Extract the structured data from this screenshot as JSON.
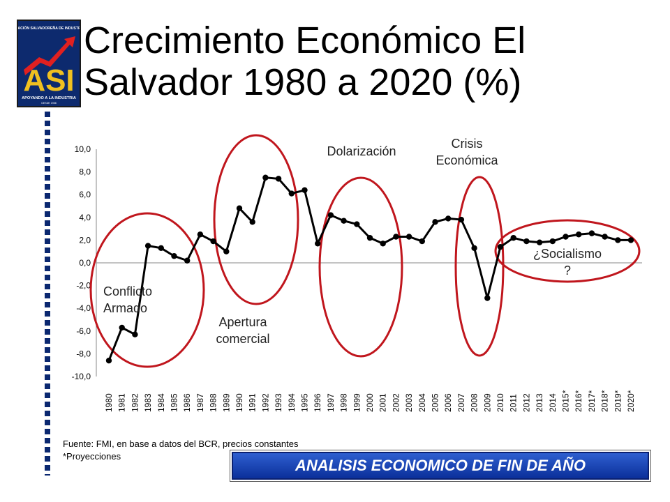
{
  "logo": {
    "org_text": "ASOCIACIÓN SALVADOREÑA DE INDUSTRIALES",
    "acronym": "ASI",
    "tagline": "APOYANDO A LA INDUSTRIA",
    "since": "DESDE 1958",
    "colors": {
      "background": "#0d2a6e",
      "acronym": "#f0c020",
      "arrow": "#e02020"
    }
  },
  "title": "Crecimiento Económico El Salvador 1980 a 2020 (%)",
  "footnote": {
    "source": "Fuente: FMI, en base a datos del BCR, precios constantes",
    "projections": "*Proyecciones"
  },
  "banner": {
    "label": "ANALISIS ECONOMICO DE FIN DE AÑO",
    "color": "#1d49c0"
  },
  "chart_data": {
    "type": "line",
    "title": "",
    "xlabel": "",
    "ylabel": "",
    "ylim": [
      -10,
      10
    ],
    "y_ticks": [
      "10,0",
      "8,0",
      "6,0",
      "4,0",
      "2,0",
      "0,0",
      "-2,0",
      "-4,0",
      "-6,0",
      "-8,0",
      "-10,0"
    ],
    "grid": false,
    "line_color": "#000000",
    "categories": [
      "1980",
      "1981",
      "1982",
      "1983",
      "1984",
      "1985",
      "1986",
      "1987",
      "1988",
      "1989",
      "1990",
      "1991",
      "1992",
      "1993",
      "1994",
      "1995",
      "1996",
      "1997",
      "1998",
      "1999",
      "2000",
      "2001",
      "2002",
      "2003",
      "2004",
      "2005",
      "2006",
      "2007",
      "2008",
      "2009",
      "2010",
      "2011",
      "2012",
      "2013",
      "2014",
      "2015*",
      "2016*",
      "2017*",
      "2018*",
      "2019*",
      "2020*"
    ],
    "values": [
      -8.6,
      -5.7,
      -6.3,
      1.5,
      1.3,
      0.6,
      0.2,
      2.5,
      1.9,
      1.0,
      4.8,
      3.6,
      7.5,
      7.4,
      6.1,
      6.4,
      1.7,
      4.2,
      3.7,
      3.4,
      2.2,
      1.7,
      2.3,
      2.3,
      1.9,
      3.6,
      3.9,
      3.8,
      1.3,
      -3.1,
      1.4,
      2.2,
      1.9,
      1.8,
      1.9,
      2.3,
      2.5,
      2.6,
      2.3,
      2.0,
      2.0
    ],
    "annotations": [
      {
        "text": [
          "Conflicto",
          "Armado"
        ],
        "color": "#c0161d"
      },
      {
        "text": [
          "Apertura",
          "comercial"
        ],
        "color": "#c0161d"
      },
      {
        "text": [
          "Dolarización"
        ],
        "color": "#c0161d"
      },
      {
        "text": [
          "Crisis",
          "Económica"
        ],
        "color": "#c0161d"
      },
      {
        "text": [
          "¿Socialismo",
          "?"
        ],
        "color": "#c0161d"
      }
    ]
  }
}
